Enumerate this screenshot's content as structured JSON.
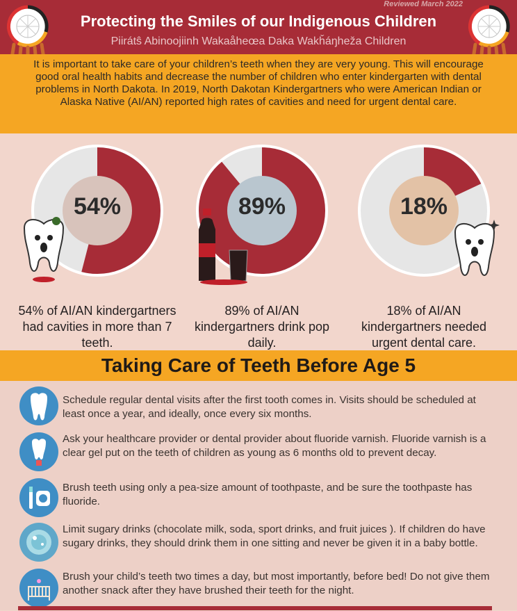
{
  "header": {
    "reviewed": "Reviewed March 2022",
    "title": "Protecting the Smiles of our Indigenous Children",
    "subtitle": "Piirátŝ Abinoojiinh Wakaåheœa Daka Wakȟáŋheža Children"
  },
  "intro": "It is important to take care of your children’s teeth when they are very young. This will encourage good oral health habits and decrease the number of children who enter kindergarten with dental problems in North Dakota. In 2019, North Dakotan Kindergartners who were American Indian or Alaska Native (AI/AN) reported high rates of cavities and need for urgent dental care.",
  "stats": [
    {
      "percent": "54%",
      "value": 0.54,
      "caption": "54% of AI/AN kindergartners had cavities in more than 7 teeth."
    },
    {
      "percent": "89%",
      "value": 0.89,
      "caption": "89% of AI/AN kindergartners drink pop daily."
    },
    {
      "percent": "18%",
      "value": 0.18,
      "caption": "18% of AI/AN kindergartners needed urgent dental care."
    }
  ],
  "colors": {
    "red": "#a72c37",
    "orange": "#f5a623",
    "pink": "#f2d6cc",
    "blue": "#3f8ec5"
  },
  "section_title": "Taking Care of Teeth Before Age 5",
  "tips": [
    {
      "icon": "tooth-icon",
      "text": "Schedule regular dental visits after the first tooth comes in. Visits should be scheduled at least once a year, and ideally, once every six months."
    },
    {
      "icon": "fluoride-tooth-icon",
      "text": "Ask your healthcare provider or dental provider about fluoride varnish. Fluoride varnish is a clear gel put on the teeth of children as young as 6 months old to prevent decay."
    },
    {
      "icon": "toothbrush-floss-icon",
      "text": "Brush teeth using only a pea-size amount of toothpaste, and be sure the toothpaste has fluoride."
    },
    {
      "icon": "sugary-drink-icon",
      "text": "Limit sugary drinks (chocolate milk, soda, sport drinks, and fruit juices ). If children do have sugary drinks, they should drink them in one sitting and never be given it in a baby bottle."
    },
    {
      "icon": "crib-icon",
      "text": "Brush your child’s teeth two times a day, but most importantly, before bed! Do not give them another snack after they have brushed their teeth for the night."
    }
  ]
}
